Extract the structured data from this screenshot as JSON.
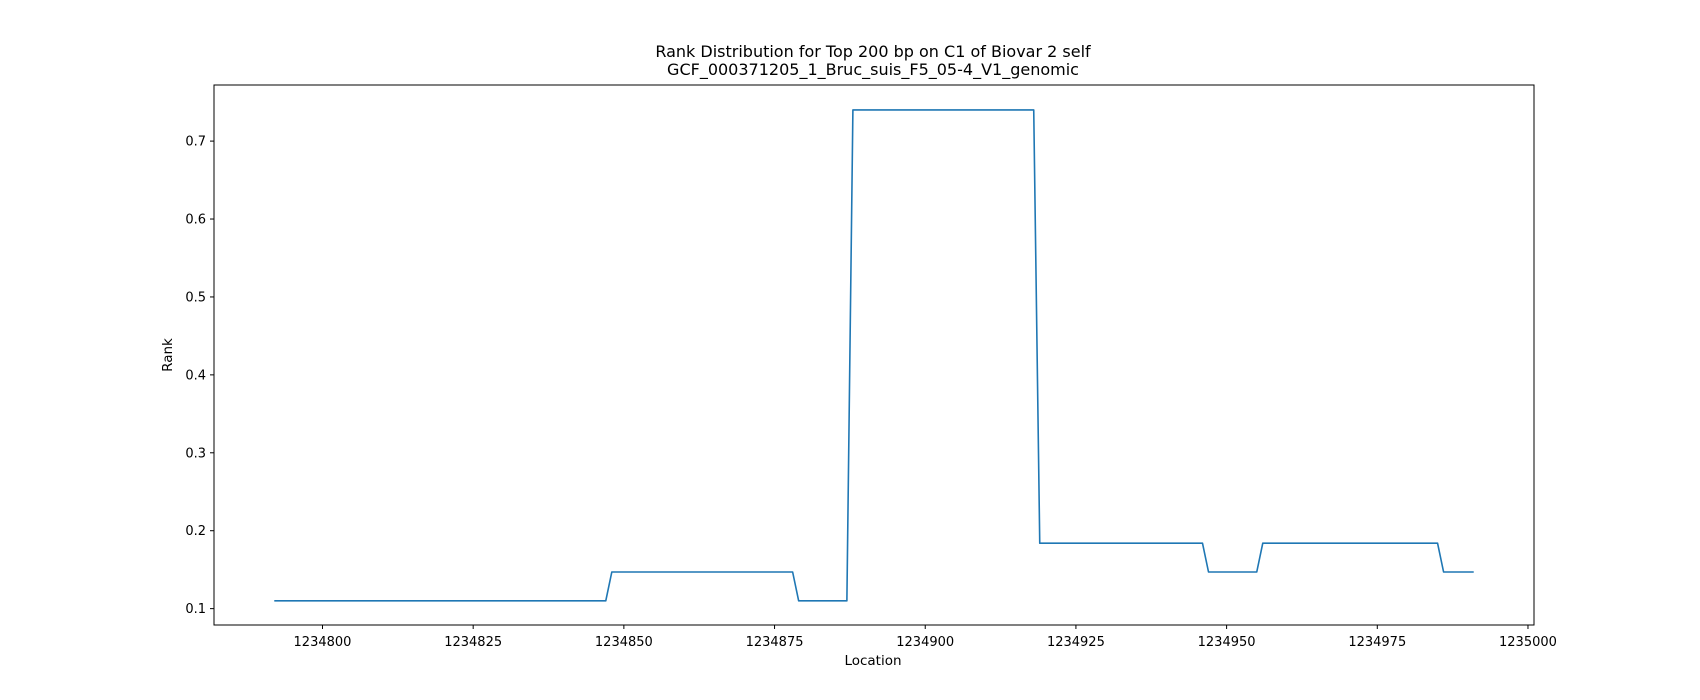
{
  "chart_data": {
    "type": "line",
    "title_line1": "Rank Distribution for Top 200 bp on C1 of Biovar 2 self",
    "title_line2": "GCF_000371205_1_Bruc_suis_F5_05-4_V1_genomic",
    "xlabel": "Location",
    "ylabel": "Rank",
    "xlim": [
      1234782,
      1235001
    ],
    "ylim": [
      0.079,
      0.772
    ],
    "x_ticks": [
      1234800,
      1234825,
      1234850,
      1234875,
      1234900,
      1234925,
      1234950,
      1234975,
      1235000
    ],
    "y_ticks": [
      0.1,
      0.2,
      0.3,
      0.4,
      0.5,
      0.6,
      0.7
    ],
    "grid": false,
    "series": [
      {
        "color": "#1f77b4",
        "x": [
          1234792,
          1234847,
          1234848,
          1234878,
          1234879,
          1234887,
          1234888,
          1234918,
          1234919,
          1234946,
          1234947,
          1234955,
          1234956,
          1234985,
          1234986,
          1234991
        ],
        "y": [
          0.11,
          0.11,
          0.147,
          0.147,
          0.11,
          0.11,
          0.74,
          0.74,
          0.184,
          0.184,
          0.147,
          0.147,
          0.184,
          0.184,
          0.147,
          0.147
        ]
      }
    ]
  }
}
